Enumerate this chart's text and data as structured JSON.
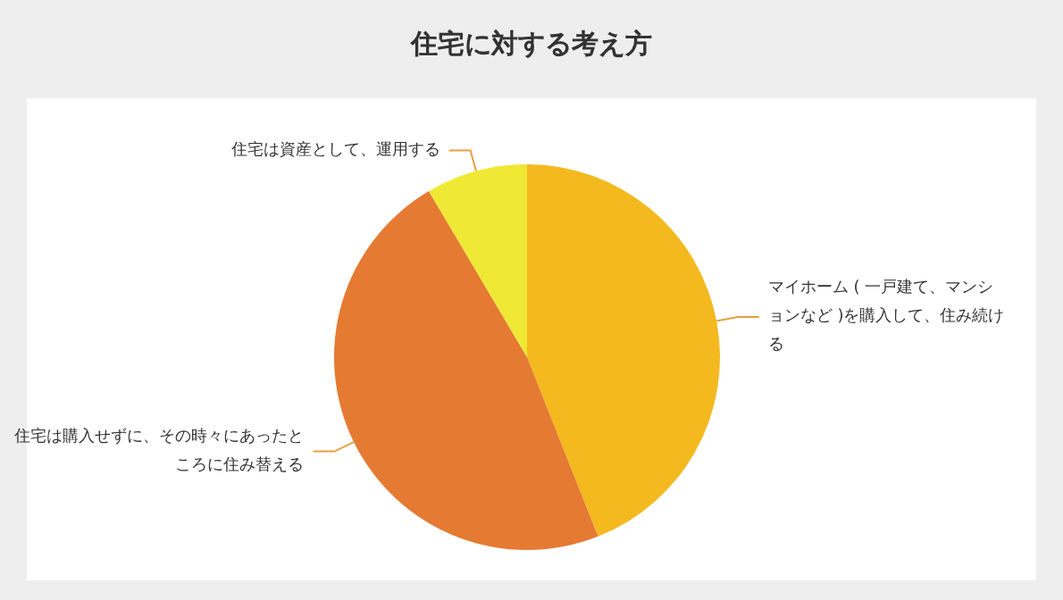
{
  "chart_data": {
    "type": "pie",
    "title": "住宅に対する考え方",
    "categories": [
      "マイホーム ( 一戸建て、マンションなど )を購入して、住み続ける",
      "住宅は購入せずに、その時々にあったところに住み替える",
      "住宅は資産として、運用する"
    ],
    "values": [
      44,
      47.5,
      8.5
    ],
    "colors": [
      "#f4b91f",
      "#e57a33",
      "#efe935"
    ],
    "legend": false
  }
}
